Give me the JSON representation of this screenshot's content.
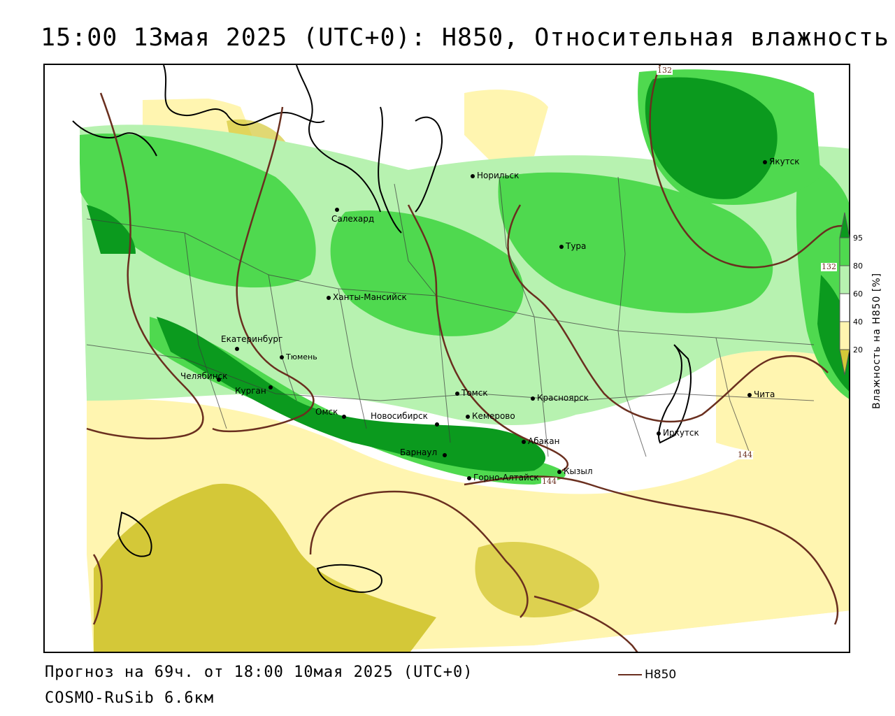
{
  "header": {
    "title": "15:00 13мая 2025 (UTC+0): H850, Относительная влажность"
  },
  "colors": {
    "level_20_40": "#fff5b0",
    "level_below_20": "#d4c838",
    "level_60_80": "#b7f2b0",
    "level_80_95": "#4fd94f",
    "level_95": "#0b9a1e",
    "contour": "#6a2f1f",
    "border": "#3a3a3a"
  },
  "cities": [
    {
      "name": "Норильск"
    },
    {
      "name": "Якутск"
    },
    {
      "name": "Салехард"
    },
    {
      "name": "Тура"
    },
    {
      "name": "Ханты-Мансийск"
    },
    {
      "name": "Екатеринбург"
    },
    {
      "name": "Тюмень"
    },
    {
      "name": "Челябинск"
    },
    {
      "name": "Курган"
    },
    {
      "name": "Томск"
    },
    {
      "name": "Красноярск"
    },
    {
      "name": "Чита"
    },
    {
      "name": "Омск"
    },
    {
      "name": "Новосибирск"
    },
    {
      "name": "Кемерово"
    },
    {
      "name": "Абакан"
    },
    {
      "name": "Иркутск"
    },
    {
      "name": "Барнаул"
    },
    {
      "name": "Кызыл"
    },
    {
      "name": "Горно-Алтайск"
    }
  ],
  "contour_labels": [
    "132",
    "132",
    "144",
    "144"
  ],
  "legend": {
    "title": "Влажность на H850 [%]",
    "ticks": [
      "95",
      "80",
      "60",
      "40",
      "20"
    ]
  },
  "footer": {
    "forecast": "Прогноз на 69ч. от 18:00 10мая 2025 (UTC+0)",
    "model": "COSMO-RuSib 6.6км",
    "line_legend_label": "H850"
  }
}
